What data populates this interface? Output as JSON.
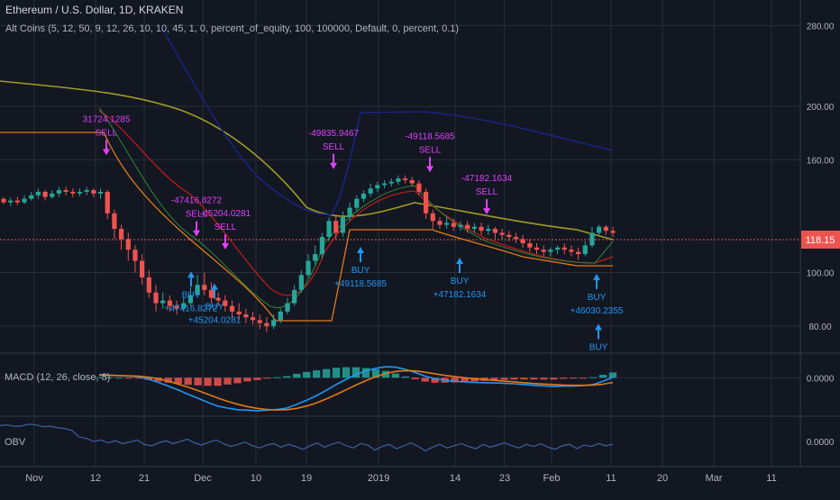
{
  "header": {
    "symbol_title": "Ethereum / U.S. Dollar, 1D, KRAKEN",
    "study_label": "Alt Coins (5, 12, 50, 9, 12, 26, 10, 10, 45, 1, 0, percent_of_equity, 100, 100000, Default, 0, percent, 0.1)"
  },
  "panes": {
    "macd_label": "MACD (12, 26, close, 8)",
    "obv_label": "OBV"
  },
  "colors": {
    "background": "#131722",
    "grid": "#2a2e39",
    "up": "#26a69a",
    "down": "#ef5350",
    "buy": "#2196f3",
    "sell": "#e040fb",
    "ma_olive": "#9e9d24",
    "ma_navy": "#1a237e",
    "ma_red": "#b71c1c",
    "ma_orange": "#e07a18",
    "macd_line": "#2196f3",
    "signal_line": "#e07a18",
    "obv_line": "#3d5a99",
    "price_tag": "#ef5350"
  },
  "chart_data": {
    "type": "candlestick",
    "scale": "log",
    "ylim": [
      72,
      300
    ],
    "y_ticks": [
      "280.00",
      "200.00",
      "160.00",
      "100.00",
      "80.00"
    ],
    "last_price": "118.15",
    "x_ticks": [
      "Nov",
      "12",
      "21",
      "Dec",
      "10",
      "19",
      "2019",
      "14",
      "23",
      "Feb",
      "11",
      "20",
      "Mar",
      "11"
    ],
    "candles": [
      [
        136,
        134,
        137,
        133
      ],
      [
        134,
        135,
        136.5,
        132
      ],
      [
        135,
        134,
        137,
        132.5
      ],
      [
        134,
        136,
        138,
        133
      ],
      [
        136,
        138,
        140,
        135
      ],
      [
        138,
        140,
        142,
        136
      ],
      [
        140,
        137,
        141,
        135
      ],
      [
        137,
        139,
        141,
        136
      ],
      [
        139,
        141,
        143,
        137
      ],
      [
        141,
        140,
        143,
        138
      ],
      [
        140,
        139,
        142,
        137
      ],
      [
        139,
        140,
        142,
        137.5
      ],
      [
        140,
        141,
        143,
        138
      ],
      [
        141,
        139,
        142,
        137
      ],
      [
        139,
        140,
        142,
        136
      ],
      [
        140,
        128,
        141,
        125
      ],
      [
        128,
        120,
        130,
        115
      ],
      [
        120,
        115,
        122,
        110
      ],
      [
        115,
        110,
        118,
        105
      ],
      [
        110,
        105,
        112,
        100
      ],
      [
        105,
        98,
        108,
        95
      ],
      [
        98,
        92,
        101,
        90
      ],
      [
        92,
        88,
        95,
        85
      ],
      [
        88,
        89,
        92,
        86
      ],
      [
        89,
        87,
        91,
        85
      ],
      [
        87,
        86,
        89,
        84
      ],
      [
        86,
        88,
        90,
        85
      ],
      [
        88,
        91,
        94,
        87
      ],
      [
        91,
        95,
        99,
        90
      ],
      [
        95,
        93,
        100,
        91
      ],
      [
        93,
        90,
        96,
        88
      ],
      [
        90,
        89,
        92,
        87
      ],
      [
        89,
        87,
        91,
        85
      ],
      [
        87,
        85,
        89,
        83
      ],
      [
        85,
        84,
        88,
        82
      ],
      [
        84,
        83,
        86,
        81
      ],
      [
        83,
        82,
        85,
        80.5
      ],
      [
        82,
        81,
        84,
        79
      ],
      [
        81,
        80,
        83,
        78
      ],
      [
        80,
        82,
        84,
        79
      ],
      [
        82,
        85,
        86,
        81
      ],
      [
        85,
        88,
        90,
        84
      ],
      [
        88,
        93,
        95,
        87
      ],
      [
        93,
        99,
        101,
        92
      ],
      [
        99,
        105,
        108,
        98
      ],
      [
        105,
        108,
        112,
        103
      ],
      [
        108,
        116,
        118,
        106
      ],
      [
        116,
        124,
        126,
        114
      ],
      [
        124,
        118,
        127,
        115
      ],
      [
        118,
        126,
        129,
        116
      ],
      [
        126,
        131,
        134,
        124
      ],
      [
        131,
        136,
        138,
        129
      ],
      [
        136,
        139,
        141,
        134
      ],
      [
        139,
        142,
        145,
        137
      ],
      [
        142,
        144,
        146,
        140
      ],
      [
        144,
        145,
        147,
        142
      ],
      [
        145,
        146,
        148,
        143
      ],
      [
        146,
        148,
        150,
        144
      ],
      [
        148,
        147,
        150,
        145
      ],
      [
        147,
        145,
        149,
        143
      ],
      [
        145,
        140,
        147,
        138
      ],
      [
        140,
        128,
        142,
        125
      ],
      [
        128,
        124,
        130,
        120
      ],
      [
        124,
        122,
        126,
        120
      ],
      [
        122,
        123,
        126,
        120
      ],
      [
        123,
        121,
        125,
        119
      ],
      [
        121,
        122,
        124,
        119
      ],
      [
        122,
        120,
        124,
        118
      ],
      [
        120,
        121,
        123,
        118
      ],
      [
        121,
        119,
        123,
        117
      ],
      [
        119,
        120,
        122,
        117
      ],
      [
        120,
        118,
        121,
        115
      ],
      [
        118,
        117,
        120,
        115
      ],
      [
        117,
        116,
        119,
        114
      ],
      [
        116,
        115,
        118,
        113
      ],
      [
        115,
        113,
        117,
        111
      ],
      [
        113,
        111,
        115,
        109
      ],
      [
        111,
        110,
        113,
        108
      ],
      [
        110,
        109,
        112,
        107
      ],
      [
        109,
        110,
        111,
        107
      ],
      [
        110,
        111,
        112,
        108
      ],
      [
        111,
        110,
        113,
        108
      ],
      [
        110,
        109,
        112,
        107
      ],
      [
        109,
        108,
        111,
        105.5
      ],
      [
        108,
        112,
        114,
        107
      ],
      [
        112,
        118,
        121,
        111
      ],
      [
        118,
        121,
        122,
        117
      ],
      [
        121,
        119,
        122,
        117
      ],
      [
        119,
        118,
        121,
        116
      ]
    ],
    "annotations": [
      {
        "kind": "sell",
        "label": "SELL",
        "value": "31724.1285",
        "price": 160
      },
      {
        "kind": "sell",
        "label": "SELL",
        "value": "-47416.8272",
        "price": 114
      },
      {
        "kind": "sell",
        "label": "SELL",
        "value": "-45204.0281",
        "price": 108
      },
      {
        "kind": "sell",
        "label": "SELL",
        "value": "-49835.9467",
        "price": 151
      },
      {
        "kind": "sell",
        "label": "SELL",
        "value": "-49118.5685",
        "price": 149
      },
      {
        "kind": "sell",
        "label": "SELL",
        "value": "-47182.1634",
        "price": 125
      },
      {
        "kind": "buy",
        "label": "BUY",
        "value": "+47416.8272",
        "price": 102
      },
      {
        "kind": "buy",
        "label": "BUY",
        "value": "+45204.0281",
        "price": 97
      },
      {
        "kind": "buy",
        "label": "BUY",
        "value": "+49118.5685",
        "price": 113
      },
      {
        "kind": "buy",
        "label": "BUY",
        "value": "+47182.1634",
        "price": 108
      },
      {
        "kind": "buy",
        "label": "BUY",
        "value": "+46030.2355",
        "price": 101
      },
      {
        "kind": "buy",
        "label": "BUY",
        "value": "",
        "price": 82
      }
    ],
    "macd": {
      "ylim": [
        -14,
        8
      ],
      "tick_label": "0.0000",
      "macd_line": [
        1.2,
        1.0,
        0.8,
        0.6,
        0.4,
        -0.6,
        -1.8,
        -3.2,
        -4.7,
        -6.3,
        -7.8,
        -9.4,
        -10.8,
        -11.6,
        -12.2,
        -12.4,
        -12.6,
        -12.4,
        -12.1,
        -11.6,
        -10.2,
        -8.6,
        -6.8,
        -4.8,
        -2.6,
        -0.6,
        1.2,
        2.6,
        3.6,
        4.2,
        4.0,
        3.2,
        2.0,
        0.6,
        -0.4,
        -1.0,
        -1.4,
        -1.6,
        -1.8,
        -1.9,
        -2.0,
        -2.1,
        -2.3,
        -2.6,
        -2.9,
        -3.1,
        -3.3,
        -3.2,
        -3.2,
        -3.0,
        -2.6,
        -1.4,
        0.2
      ],
      "signal_line": [
        1.0,
        0.9,
        0.8,
        0.7,
        0.6,
        0.2,
        -0.4,
        -1.3,
        -2.4,
        -3.6,
        -4.9,
        -6.3,
        -7.7,
        -9.0,
        -10.1,
        -11.0,
        -11.7,
        -12.1,
        -12.3,
        -12.2,
        -11.7,
        -10.8,
        -9.6,
        -8.1,
        -6.4,
        -4.6,
        -2.8,
        -1.1,
        0.4,
        1.6,
        2.4,
        2.7,
        2.6,
        2.1,
        1.5,
        0.9,
        0.4,
        0.0,
        -0.4,
        -0.7,
        -1.0,
        -1.3,
        -1.6,
        -1.9,
        -2.2,
        -2.4,
        -2.6,
        -2.8,
        -2.9,
        -2.9,
        -2.8,
        -2.5,
        -1.8
      ],
      "histogram": [
        0.2,
        0.1,
        0.0,
        -0.1,
        -0.2,
        -0.8,
        -1.4,
        -1.9,
        -2.3,
        -2.7,
        -2.9,
        -3.1,
        -3.1,
        -2.6,
        -2.1,
        -1.4,
        -0.9,
        -0.3,
        0.2,
        0.6,
        1.5,
        2.2,
        2.8,
        3.3,
        3.8,
        4.0,
        4.0,
        3.7,
        3.2,
        2.6,
        1.6,
        0.5,
        -0.6,
        -1.5,
        -1.9,
        -1.9,
        -1.8,
        -1.6,
        -1.4,
        -1.2,
        -1.0,
        -0.8,
        -0.7,
        -0.7,
        -0.7,
        -0.7,
        -0.7,
        -0.4,
        -0.3,
        -0.1,
        0.2,
        1.1,
        2.0
      ]
    },
    "obv": {
      "ylim": [
        -300000,
        300000
      ],
      "tick_label": "0.0000",
      "values": [
        220000,
        230000,
        210000,
        215000,
        240000,
        230000,
        205000,
        210000,
        190000,
        180000,
        150000,
        60000,
        40000,
        0,
        20000,
        -20000,
        10000,
        -30000,
        -10000,
        20000,
        -40000,
        -60000,
        -20000,
        10000,
        -30000,
        0,
        30000,
        -20000,
        -50000,
        -10000,
        20000,
        -30000,
        -70000,
        -40000,
        -10000,
        -60000,
        -90000,
        -50000,
        -30000,
        -80000,
        -40000,
        -70000,
        -110000,
        -60000,
        -20000,
        -80000,
        -40000,
        -10000,
        -60000,
        -90000,
        -30000,
        -50000,
        -120000,
        -70000,
        -40000,
        -100000,
        -60000,
        -20000,
        -70000,
        -130000,
        -80000,
        -40000,
        -90000,
        -60000,
        -30000,
        -70000,
        -100000,
        -40000,
        -80000,
        -50000,
        -20000,
        -60000,
        -90000,
        -40000,
        -70000,
        -30000,
        -80000,
        -110000,
        -60000,
        -40000,
        -100000,
        -50000,
        -70000,
        -30000,
        -60000,
        -40000
      ]
    }
  }
}
